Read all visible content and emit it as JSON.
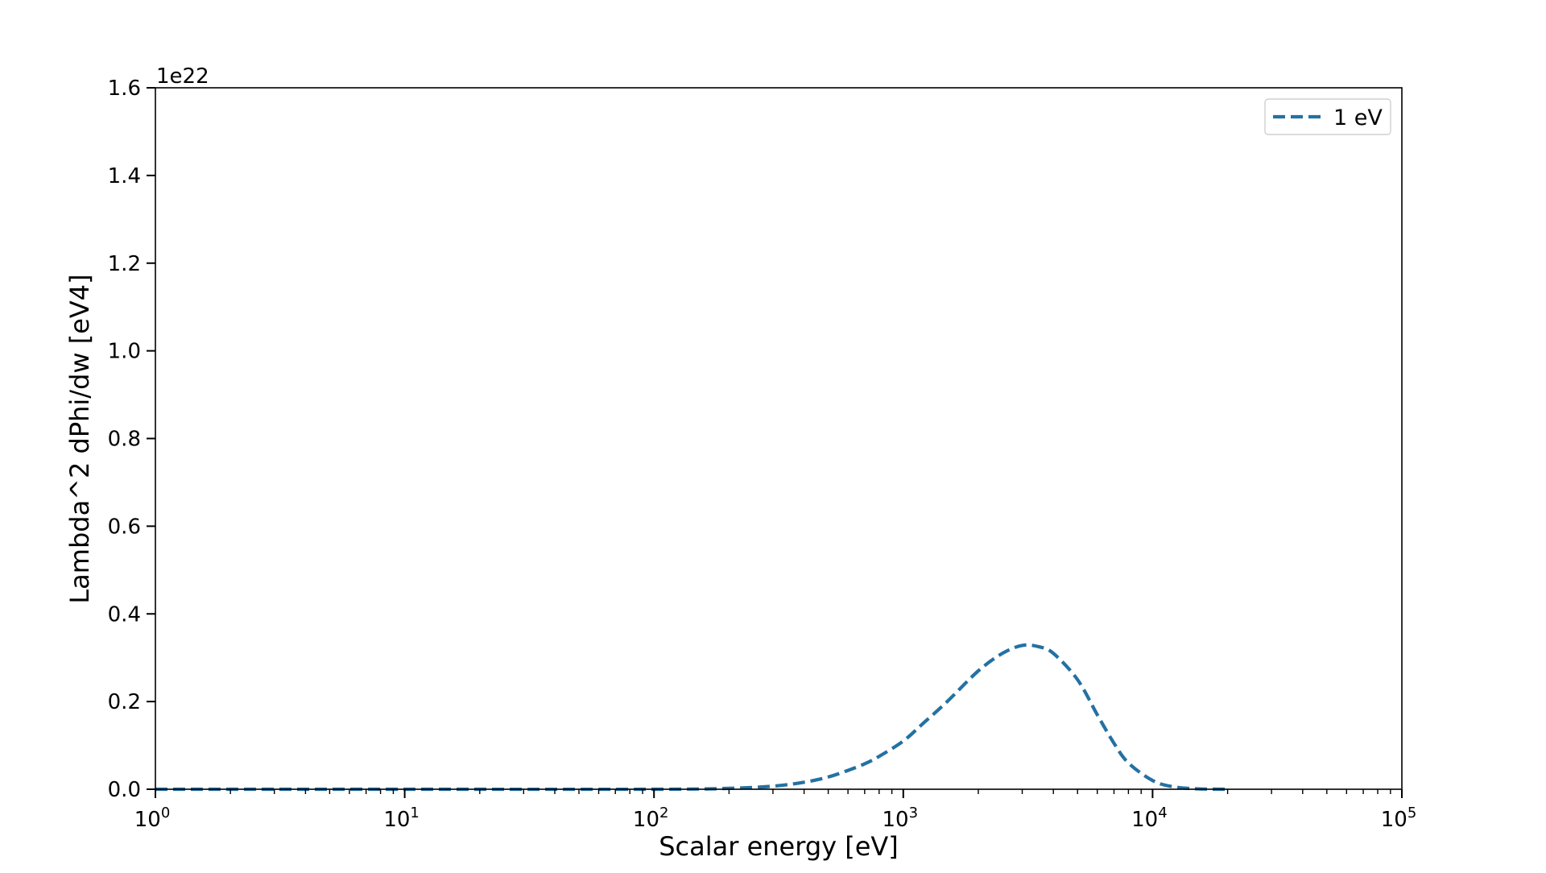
{
  "chart_data": {
    "type": "line",
    "xlabel": "Scalar energy [eV]",
    "ylabel": "Lambda^2 dPhi/dw [eV4]",
    "y_offset_label": "1e22",
    "x_scale": "log",
    "x_range": [
      1,
      100000
    ],
    "y_range": [
      0,
      1.6
    ],
    "y_multiplier": 1e+22,
    "x_ticks": [
      {
        "value": 1,
        "base": "10",
        "exp": "0"
      },
      {
        "value": 10,
        "base": "10",
        "exp": "1"
      },
      {
        "value": 100,
        "base": "10",
        "exp": "2"
      },
      {
        "value": 1000,
        "base": "10",
        "exp": "3"
      },
      {
        "value": 10000,
        "base": "10",
        "exp": "4"
      },
      {
        "value": 100000,
        "base": "10",
        "exp": "5"
      }
    ],
    "y_ticks": [
      "0.0",
      "0.2",
      "0.4",
      "0.6",
      "0.8",
      "1.0",
      "1.2",
      "1.4",
      "1.6"
    ],
    "grid": false,
    "legend_position": "top-right",
    "series": [
      {
        "name": "1 eV",
        "style": "dashed",
        "color": "#2471a3",
        "x": [
          1,
          10,
          100,
          200,
          300,
          400,
          500,
          600,
          700,
          800,
          1000,
          1200,
          1500,
          2000,
          2500,
          3000,
          3500,
          4000,
          5000,
          6000,
          7000,
          8000,
          10000,
          12000,
          15000,
          20000
        ],
        "y": [
          0.0,
          0.0,
          0.0,
          0.002,
          0.007,
          0.016,
          0.028,
          0.043,
          0.058,
          0.075,
          0.11,
          0.15,
          0.2,
          0.27,
          0.31,
          0.328,
          0.325,
          0.31,
          0.25,
          0.17,
          0.105,
          0.06,
          0.02,
          0.006,
          0.001,
          0.0
        ]
      }
    ]
  }
}
